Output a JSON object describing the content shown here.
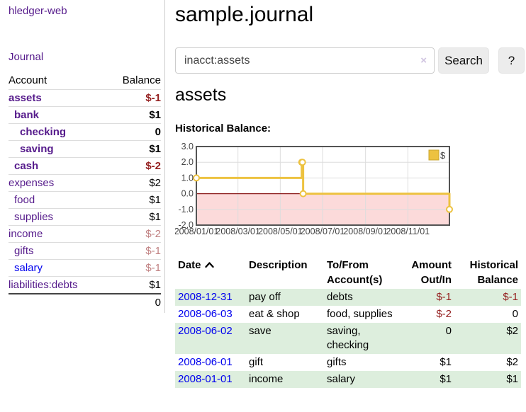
{
  "colors": {
    "purple": "#551A8B",
    "blue": "#0000EE",
    "neg": "#941f1f",
    "negdim": "#c08081",
    "rowgreen": "#ddeedd",
    "gold": "#EDC240",
    "gold_border": "#c9a42e",
    "pink": "#fcdada",
    "zeroline": "#8b1a1a",
    "gridline": "#dddddd",
    "plotborder": "#545454"
  },
  "app": {
    "title": "hledger-web"
  },
  "nav": {
    "journal": "Journal"
  },
  "sidebar": {
    "headers": {
      "account": "Account",
      "balance": "Balance"
    },
    "accounts": [
      {
        "name": "assets",
        "balance": "$-1",
        "level": 1,
        "bold": true,
        "neg": "dark"
      },
      {
        "name": "bank",
        "balance": "$1",
        "level": 2,
        "bold": true
      },
      {
        "name": "checking",
        "balance": "0",
        "level": 3,
        "bold": true
      },
      {
        "name": "saving",
        "balance": "$1",
        "level": 3,
        "bold": true
      },
      {
        "name": "cash",
        "balance": "$-2",
        "level": 2,
        "bold": true,
        "neg": "dark"
      },
      {
        "name": "expenses",
        "balance": "$2",
        "level": 1
      },
      {
        "name": "food",
        "balance": "$1",
        "level": 2
      },
      {
        "name": "supplies",
        "balance": "$1",
        "level": 2
      },
      {
        "name": "income",
        "balance": "$-2",
        "level": 1,
        "neg": "dim"
      },
      {
        "name": "gifts",
        "balance": "$-1",
        "level": 2,
        "neg": "dim"
      },
      {
        "name": "salary",
        "balance": "$-1",
        "level": 2,
        "neg": "dim",
        "link": "blue"
      },
      {
        "name": "liabilities:debts",
        "balance": "$1",
        "level": 1
      }
    ],
    "total": "0"
  },
  "main": {
    "title": "sample.journal",
    "search": {
      "value": "inacct:assets",
      "clear": "×",
      "button": "Search",
      "help": "?"
    },
    "heading": "assets",
    "chart_label": "Historical Balance:"
  },
  "chart_data": {
    "type": "line",
    "step": true,
    "title": "Historical Balance",
    "series": [
      {
        "name": "$",
        "color": "#EDC240",
        "points": [
          [
            "2008-01-01",
            1
          ],
          [
            "2008-06-01",
            2
          ],
          [
            "2008-06-02",
            2
          ],
          [
            "2008-06-03",
            0
          ],
          [
            "2008-12-31",
            -1
          ]
        ]
      }
    ],
    "xrange": [
      "2008-01-01",
      "2008-12-31"
    ],
    "ylim": [
      -2,
      3
    ],
    "yticks": [
      3,
      2,
      1,
      0,
      -1,
      -2
    ],
    "xticks": [
      {
        "label": "2008/01/01",
        "date": "2008-01-01"
      },
      {
        "label": "2008/03/01",
        "date": "2008-03-01"
      },
      {
        "label": "2008/05/01",
        "date": "2008-05-01"
      },
      {
        "label": "2008/07/01",
        "date": "2008-07-01"
      },
      {
        "label": "2008/09/01",
        "date": "2008-09-01"
      },
      {
        "label": "2008/11/01",
        "date": "2008-11-01"
      }
    ],
    "legend": {
      "label": "$",
      "position": "top-right"
    },
    "grid": true,
    "negative_region": true
  },
  "register": {
    "headers": [
      "Date",
      "Description",
      "To/From Account(s)",
      "Amount Out/In",
      "Historical Balance"
    ],
    "rows": [
      {
        "date": "2008-12-31",
        "description": "pay off",
        "accounts": "debts",
        "amount": "$-1",
        "balance": "$-1"
      },
      {
        "date": "2008-06-03",
        "description": "eat & shop",
        "accounts": "food, supplies",
        "amount": "$-2",
        "balance": "0"
      },
      {
        "date": "2008-06-02",
        "description": "save",
        "accounts": "saving, checking",
        "amount": "0",
        "balance": "$2"
      },
      {
        "date": "2008-06-01",
        "description": "gift",
        "accounts": "gifts",
        "amount": "$1",
        "balance": "$2"
      },
      {
        "date": "2008-01-01",
        "description": "income",
        "accounts": "salary",
        "amount": "$1",
        "balance": "$1"
      }
    ]
  }
}
